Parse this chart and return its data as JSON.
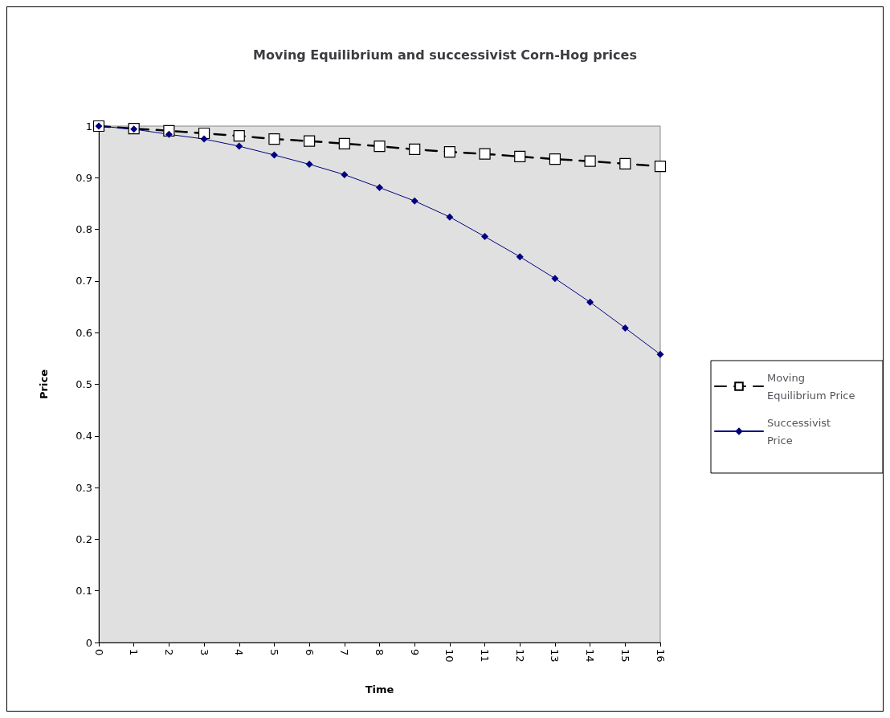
{
  "chart_data": {
    "type": "line",
    "title": "Moving Equilibrium and successivist Corn-Hog prices",
    "xlabel": "Time",
    "ylabel": "Price",
    "categories": [
      "0",
      "1",
      "2",
      "3",
      "4",
      "5",
      "6",
      "7",
      "8",
      "9",
      "10",
      "11",
      "12",
      "13",
      "14",
      "15",
      "16"
    ],
    "series": [
      {
        "name": "Moving Equilibrium Price",
        "color": "#000000",
        "marker": "square",
        "line_style": "dashed",
        "values": [
          1.0,
          0.995,
          0.991,
          0.986,
          0.981,
          0.975,
          0.971,
          0.966,
          0.961,
          0.955,
          0.95,
          0.946,
          0.941,
          0.936,
          0.932,
          0.927,
          0.922
        ]
      },
      {
        "name": "Successivist Price",
        "color": "#000080",
        "marker": "diamond",
        "line_style": "solid",
        "values": [
          1.0,
          0.994,
          0.984,
          0.975,
          0.961,
          0.944,
          0.926,
          0.906,
          0.881,
          0.855,
          0.824,
          0.786,
          0.747,
          0.705,
          0.659,
          0.609,
          0.558
        ]
      }
    ],
    "ylim": [
      0,
      1
    ],
    "yticks": [
      0,
      0.1,
      0.2,
      0.3,
      0.4,
      0.5,
      0.6,
      0.7,
      0.8,
      0.9,
      1
    ],
    "grid": false,
    "legend": "right"
  }
}
